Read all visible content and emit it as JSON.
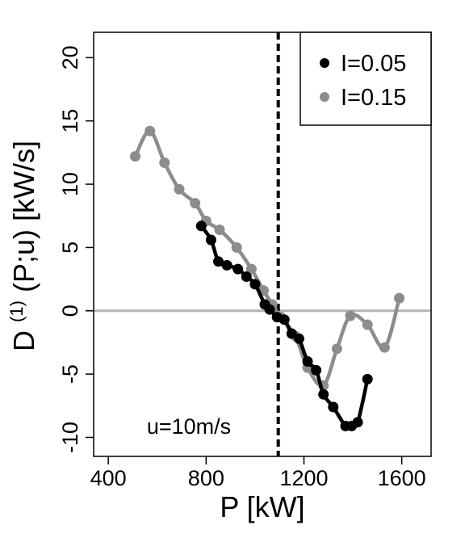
{
  "chart_data": {
    "type": "line",
    "title": "",
    "xlabel": "P [kW]",
    "ylabel_parts": {
      "main": "D",
      "sup": "(1)",
      "rest": "(P;u) [kW/s]"
    },
    "xlim": [
      340,
      1720
    ],
    "ylim": [
      -11.5,
      22
    ],
    "x_ticks": [
      400,
      800,
      1200,
      1600
    ],
    "y_ticks": [
      -10,
      -5,
      0,
      5,
      10,
      15,
      20
    ],
    "hline": {
      "y": 0,
      "color": "#b3b3b3"
    },
    "vline": {
      "x": 1095,
      "color": "#000000",
      "style": "dashed"
    },
    "annotation": "u=10m/s",
    "legend": {
      "position": "top-right"
    },
    "series": [
      {
        "name": "I=0.05",
        "color": "#000000",
        "points": [
          {
            "x": 780,
            "y": 6.7
          },
          {
            "x": 820,
            "y": 5.6
          },
          {
            "x": 850,
            "y": 3.9
          },
          {
            "x": 885,
            "y": 3.6
          },
          {
            "x": 930,
            "y": 3.3
          },
          {
            "x": 965,
            "y": 2.7
          },
          {
            "x": 1000,
            "y": 2.1
          },
          {
            "x": 1040,
            "y": 0.5
          },
          {
            "x": 1060,
            "y": 0.1
          },
          {
            "x": 1090,
            "y": -0.5
          },
          {
            "x": 1120,
            "y": -0.7
          },
          {
            "x": 1150,
            "y": -1.8
          },
          {
            "x": 1180,
            "y": -2.2
          },
          {
            "x": 1215,
            "y": -4.0
          },
          {
            "x": 1250,
            "y": -4.7
          },
          {
            "x": 1280,
            "y": -6.6
          },
          {
            "x": 1320,
            "y": -7.6
          },
          {
            "x": 1370,
            "y": -9.1
          },
          {
            "x": 1395,
            "y": -9.1
          },
          {
            "x": 1420,
            "y": -8.8
          },
          {
            "x": 1460,
            "y": -5.4
          }
        ]
      },
      {
        "name": "I=0.15",
        "color": "#8c8c8c",
        "points": [
          {
            "x": 510,
            "y": 12.2
          },
          {
            "x": 570,
            "y": 14.2
          },
          {
            "x": 630,
            "y": 11.7
          },
          {
            "x": 690,
            "y": 9.6
          },
          {
            "x": 755,
            "y": 8.5
          },
          {
            "x": 800,
            "y": 7.1
          },
          {
            "x": 855,
            "y": 6.4
          },
          {
            "x": 925,
            "y": 5.0
          },
          {
            "x": 985,
            "y": 3.3
          },
          {
            "x": 1035,
            "y": 1.6
          },
          {
            "x": 1070,
            "y": 0.5
          },
          {
            "x": 1105,
            "y": -0.5
          },
          {
            "x": 1165,
            "y": -2.0
          },
          {
            "x": 1215,
            "y": -4.5
          },
          {
            "x": 1280,
            "y": -5.9
          },
          {
            "x": 1335,
            "y": -3.0
          },
          {
            "x": 1390,
            "y": -0.4
          },
          {
            "x": 1460,
            "y": -1.1
          },
          {
            "x": 1530,
            "y": -2.9
          },
          {
            "x": 1590,
            "y": 1.0
          }
        ]
      }
    ]
  }
}
